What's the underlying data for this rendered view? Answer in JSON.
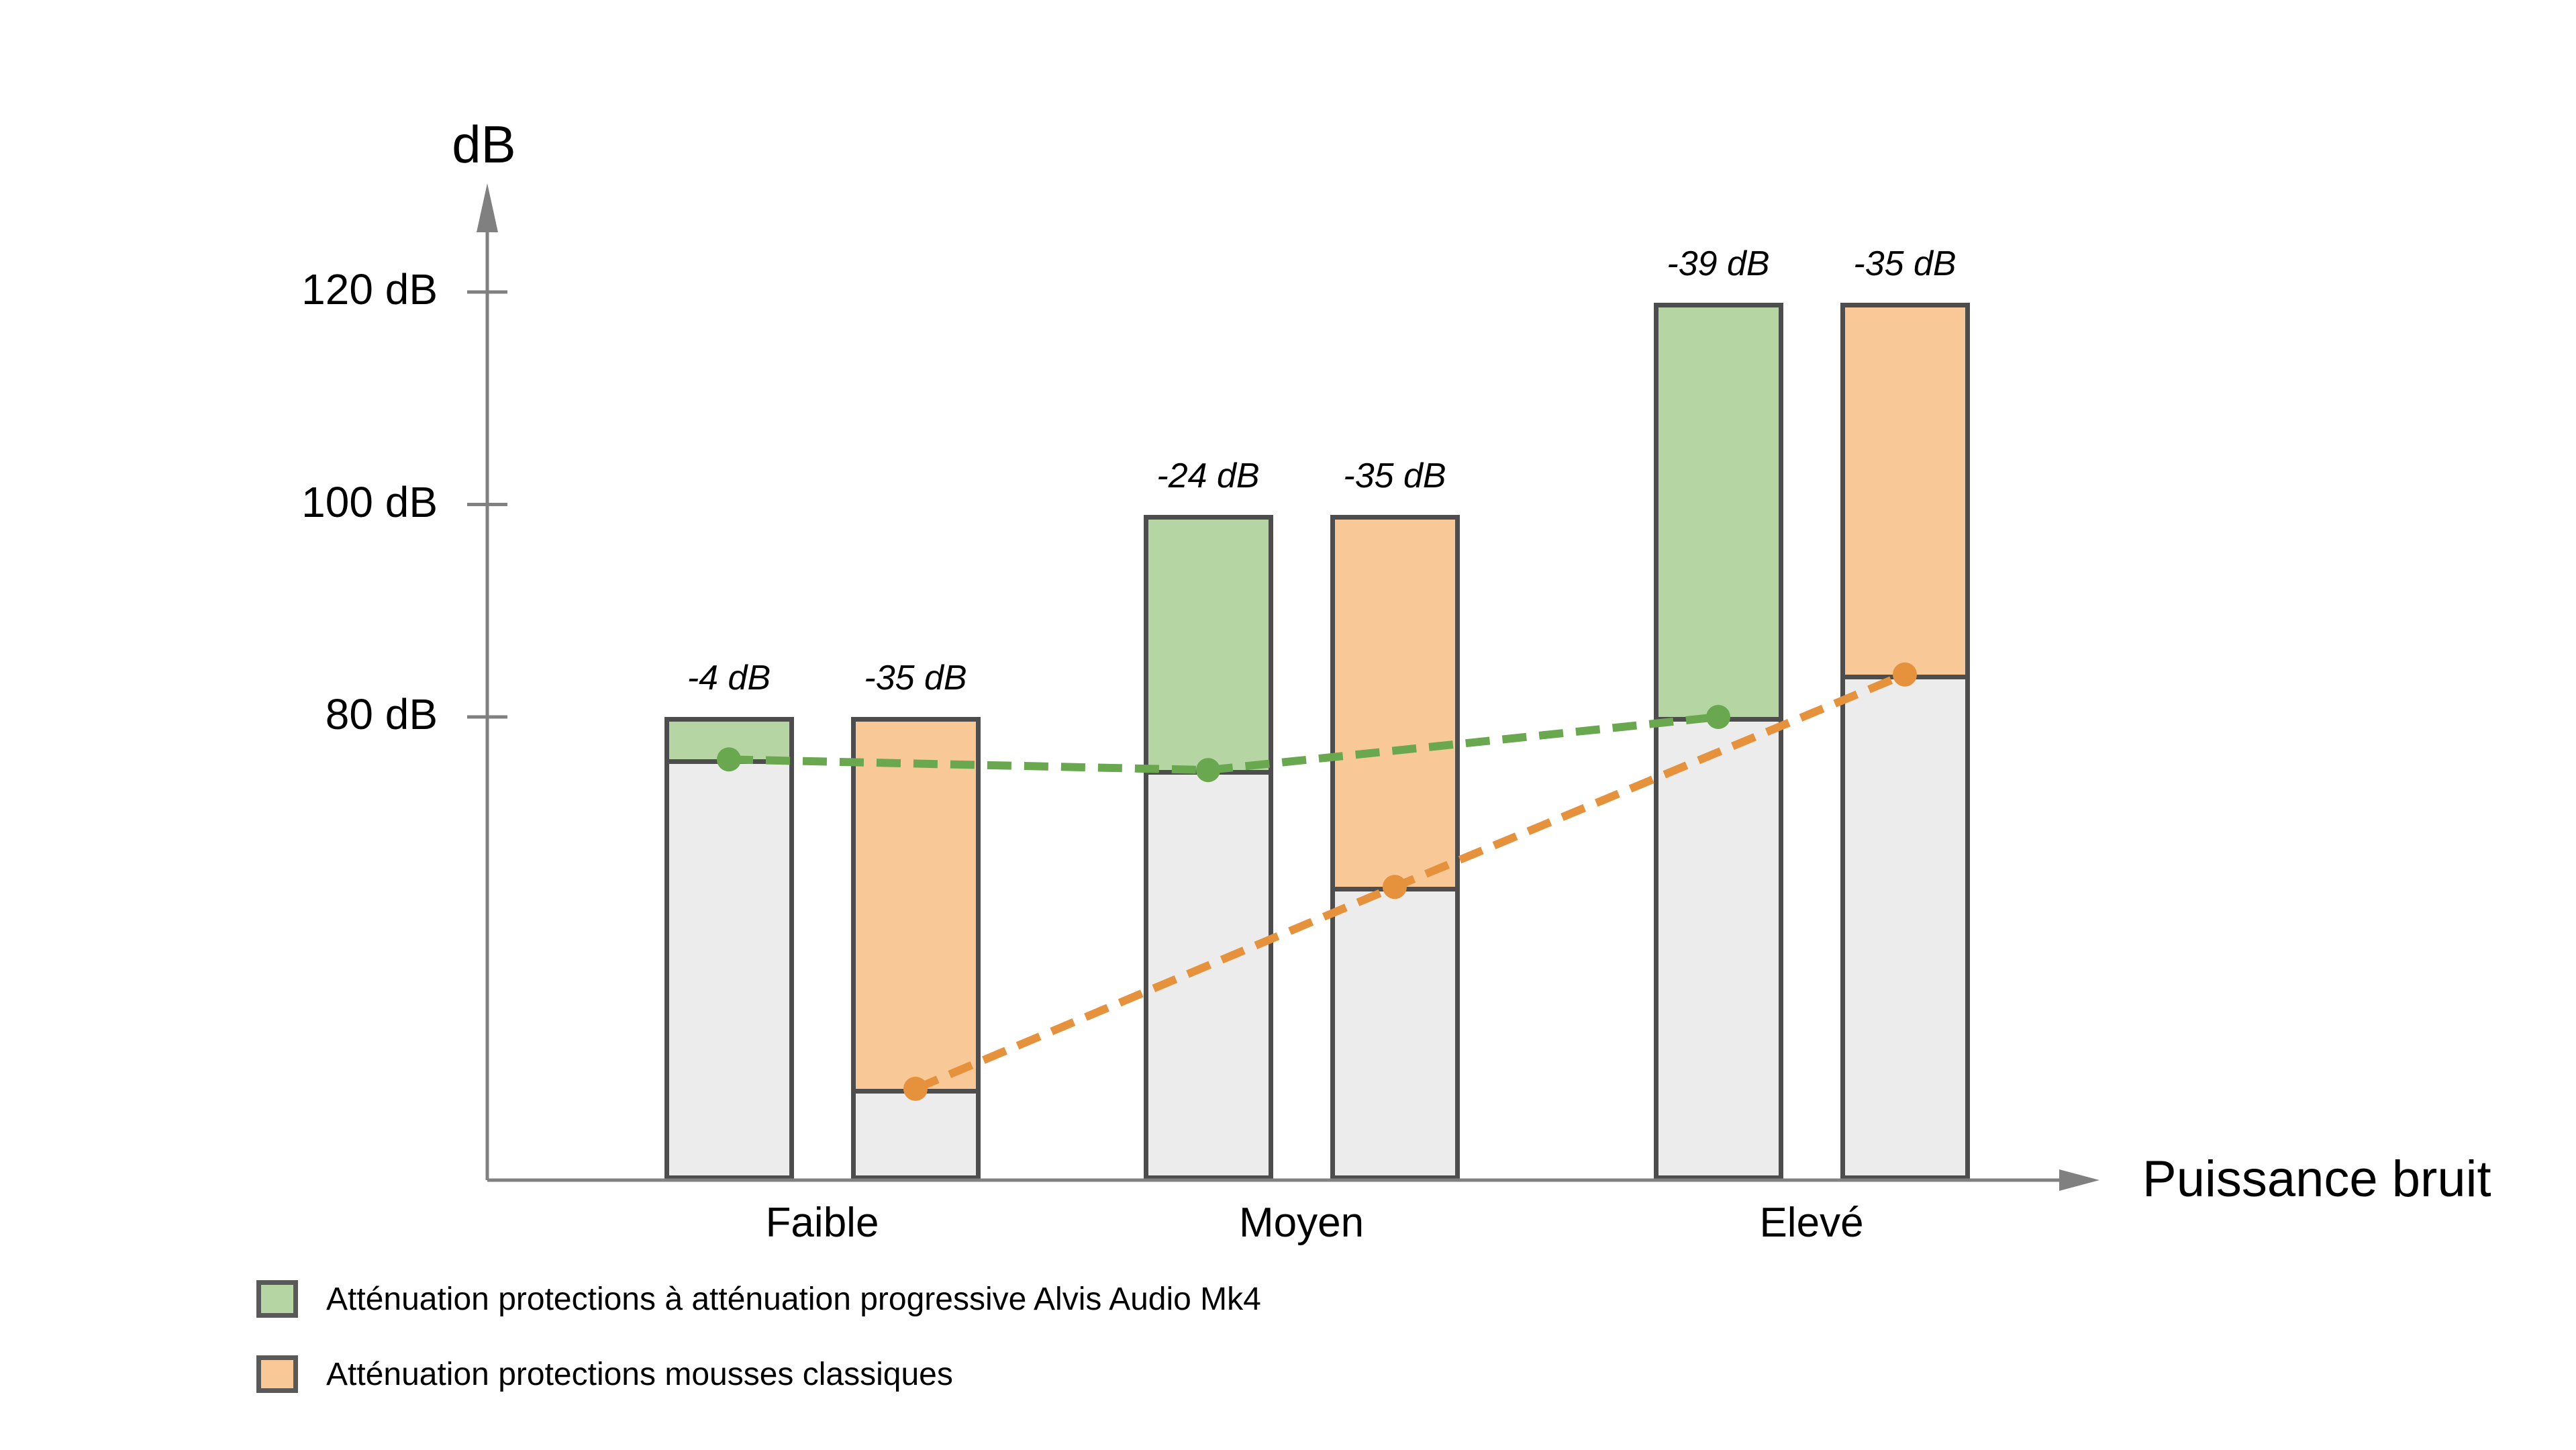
{
  "chart_data": {
    "type": "bar",
    "y_axis_title": "dB",
    "x_axis_title": "Puissance bruit",
    "categories": [
      "Faible",
      "Moyen",
      "Elevé"
    ],
    "y_ticks": [
      {
        "value": 120,
        "label": "120 dB"
      },
      {
        "value": 100,
        "label": "100 dB"
      },
      {
        "value": 80,
        "label": "80 dB"
      }
    ],
    "noise_levels_db": [
      80,
      99,
      119
    ],
    "series": [
      {
        "name": "Atténuation protections à atténuation progressive Alvis Audio Mk4",
        "attenuation_labels": [
          "-4 dB",
          "-24 dB",
          "-39 dB"
        ],
        "attenuation_db": [
          4,
          24,
          39
        ],
        "residual_levels_db": [
          76,
          75,
          80
        ],
        "fill_color": "#b5d6a3",
        "line_color": "#6aa84f"
      },
      {
        "name": "Atténuation protections mousses classiques",
        "attenuation_labels": [
          "-35 dB",
          "-35 dB",
          "-35 dB"
        ],
        "attenuation_db": [
          35,
          35,
          35
        ],
        "residual_levels_db": [
          45,
          64,
          84
        ],
        "fill_color": "#f8c997",
        "line_color": "#e6913c"
      }
    ],
    "base_fill_color": "#ececec",
    "bar_border_color": "#4d4d4d",
    "axis_color": "#808080",
    "text_color": "#000000",
    "grid": false,
    "legend_position": "bottom-left"
  }
}
